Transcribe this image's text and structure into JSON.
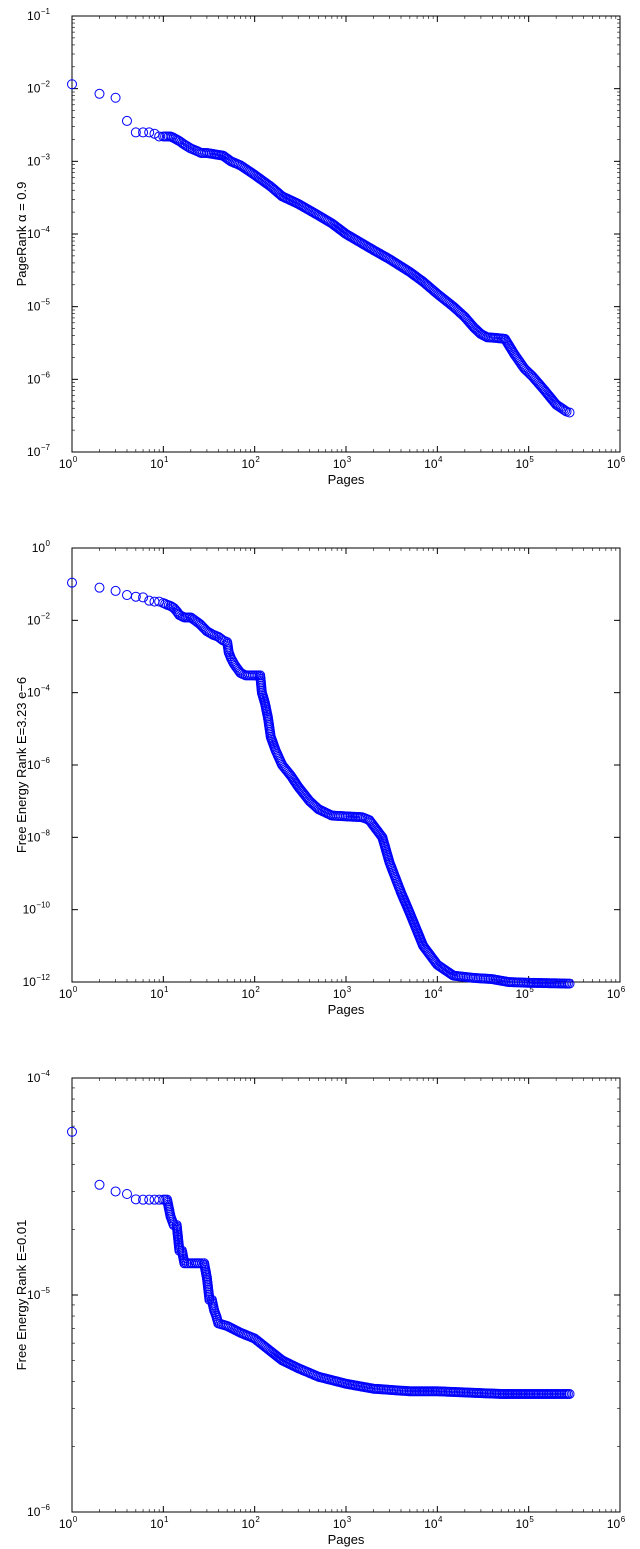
{
  "chart_data": [
    {
      "type": "scatter",
      "xscale": "log",
      "yscale": "log",
      "xlim": [
        1,
        1000000
      ],
      "ylim": [
        1e-07,
        0.1
      ],
      "xlabel": "Pages",
      "ylabel": "PageRank α = 0.9",
      "x_tick_exponents": [
        0,
        1,
        2,
        3,
        4,
        5,
        6
      ],
      "y_tick_exponents": [
        -7,
        -6,
        -5,
        -4,
        -3,
        -2,
        -1
      ],
      "marker_color": "#0000ff",
      "marker": "open-circle",
      "series": [
        {
          "points": [
            [
              1,
              0.0115
            ],
            [
              2,
              0.0085
            ],
            [
              3,
              0.0075
            ],
            [
              4,
              0.0036
            ],
            [
              5,
              0.0025
            ],
            [
              6,
              0.0025
            ],
            [
              7,
              0.0025
            ],
            [
              8,
              0.0024
            ],
            [
              9,
              0.0022
            ],
            [
              10,
              0.0022
            ],
            [
              12,
              0.0022
            ],
            [
              13,
              0.0021
            ],
            [
              15,
              0.0019
            ],
            [
              17,
              0.0017
            ],
            [
              20,
              0.0015
            ],
            [
              23,
              0.0014
            ],
            [
              26,
              0.0013
            ],
            [
              30,
              0.0013
            ],
            [
              45,
              0.0012
            ],
            [
              55,
              0.001
            ],
            [
              70,
              0.00088
            ],
            [
              100,
              0.00065
            ],
            [
              150,
              0.00045
            ],
            [
              200,
              0.00033
            ],
            [
              300,
              0.00026
            ],
            [
              500,
              0.00018
            ],
            [
              700,
              0.00014
            ],
            [
              1000,
              0.0001
            ],
            [
              2000,
              6e-05
            ],
            [
              3000,
              4.5e-05
            ],
            [
              5000,
              3e-05
            ],
            [
              7000,
              2.2e-05
            ],
            [
              10000,
              1.5e-05
            ],
            [
              15000,
              1e-05
            ],
            [
              20000,
              7.2e-06
            ],
            [
              25000,
              5.2e-06
            ],
            [
              30000,
              4.2e-06
            ],
            [
              35000,
              3.8e-06
            ],
            [
              45000,
              3.7e-06
            ],
            [
              55000,
              3.6e-06
            ],
            [
              70000,
              2.2e-06
            ],
            [
              90000,
              1.4e-06
            ],
            [
              110000,
              1.1e-06
            ],
            [
              150000,
              7e-07
            ],
            [
              200000,
              4.5e-07
            ],
            [
              260000,
              3.6e-07
            ],
            [
              280000,
              3.5e-07
            ]
          ]
        }
      ]
    },
    {
      "type": "scatter",
      "xscale": "log",
      "yscale": "log",
      "xlim": [
        1,
        1000000
      ],
      "ylim": [
        1e-12,
        1
      ],
      "xlabel": "Pages",
      "ylabel": "Free Energy Rank E=3.23 e−6",
      "x_tick_exponents": [
        0,
        1,
        2,
        3,
        4,
        5,
        6
      ],
      "y_tick_exponents": [
        -12,
        -10,
        -8,
        -6,
        -4,
        -2,
        0
      ],
      "marker_color": "#0000ff",
      "marker": "open-circle",
      "series": [
        {
          "points": [
            [
              1,
              0.11
            ],
            [
              2,
              0.08
            ],
            [
              3,
              0.065
            ],
            [
              4,
              0.05
            ],
            [
              5,
              0.045
            ],
            [
              6,
              0.043
            ],
            [
              7,
              0.035
            ],
            [
              8,
              0.033
            ],
            [
              9,
              0.033
            ],
            [
              10,
              0.03
            ],
            [
              11,
              0.027
            ],
            [
              12,
              0.025
            ],
            [
              13,
              0.022
            ],
            [
              14,
              0.018
            ],
            [
              15,
              0.014
            ],
            [
              17,
              0.012
            ],
            [
              20,
              0.012
            ],
            [
              25,
              0.008
            ],
            [
              30,
              0.005
            ],
            [
              35,
              0.004
            ],
            [
              40,
              0.0035
            ],
            [
              45,
              0.0028
            ],
            [
              50,
              0.0025
            ],
            [
              52,
              0.0013
            ],
            [
              55,
              0.0009
            ],
            [
              60,
              0.0006
            ],
            [
              70,
              0.00035
            ],
            [
              80,
              0.0003
            ],
            [
              100,
              0.0003
            ],
            [
              115,
              0.0003
            ],
            [
              120,
              0.0001
            ],
            [
              130,
              5e-05
            ],
            [
              140,
              2e-05
            ],
            [
              150,
              6e-06
            ],
            [
              170,
              2.5e-06
            ],
            [
              200,
              1e-06
            ],
            [
              250,
              5e-07
            ],
            [
              300,
              2.5e-07
            ],
            [
              400,
              1e-07
            ],
            [
              500,
              6e-08
            ],
            [
              700,
              4e-08
            ],
            [
              1000,
              3.8e-08
            ],
            [
              1500,
              3.6e-08
            ],
            [
              1800,
              3e-08
            ],
            [
              2500,
              1e-08
            ],
            [
              3000,
              2e-09
            ],
            [
              4000,
              3e-10
            ],
            [
              5000,
              8e-11
            ],
            [
              7000,
              1e-11
            ],
            [
              10000,
              3e-12
            ],
            [
              15000,
              1.5e-12
            ],
            [
              25000,
              1.3e-12
            ],
            [
              40000,
              1.2e-12
            ],
            [
              60000,
              1e-12
            ],
            [
              100000,
              9.5e-13
            ],
            [
              200000,
              9.2e-13
            ],
            [
              280000,
              9e-13
            ]
          ]
        }
      ]
    },
    {
      "type": "scatter",
      "xscale": "log",
      "yscale": "log",
      "xlim": [
        1,
        1000000
      ],
      "ylim": [
        1e-06,
        0.0001
      ],
      "xlabel": "Pages",
      "ylabel": "Free Energy Rank E=0.01",
      "x_tick_exponents": [
        0,
        1,
        2,
        3,
        4,
        5,
        6
      ],
      "y_tick_exponents": [
        -6,
        -5,
        -4
      ],
      "marker_color": "#0000ff",
      "marker": "open-circle",
      "series": [
        {
          "points": [
            [
              1,
              5.65e-05
            ],
            [
              2,
              3.22e-05
            ],
            [
              3,
              3e-05
            ],
            [
              4,
              2.92e-05
            ],
            [
              5,
              2.76e-05
            ],
            [
              6,
              2.75e-05
            ],
            [
              7,
              2.75e-05
            ],
            [
              8,
              2.75e-05
            ],
            [
              9,
              2.75e-05
            ],
            [
              10,
              2.75e-05
            ],
            [
              11,
              2.75e-05
            ],
            [
              12,
              2.3e-05
            ],
            [
              13,
              2.1e-05
            ],
            [
              14,
              2.1e-05
            ],
            [
              15,
              1.6e-05
            ],
            [
              16,
              1.6e-05
            ],
            [
              17,
              1.4e-05
            ],
            [
              18,
              1.4e-05
            ],
            [
              20,
              1.4e-05
            ],
            [
              22,
              1.4e-05
            ],
            [
              25,
              1.4e-05
            ],
            [
              28,
              1.4e-05
            ],
            [
              30,
              1.2e-05
            ],
            [
              32,
              9.5e-06
            ],
            [
              34,
              9.5e-06
            ],
            [
              36,
              8.5e-06
            ],
            [
              38,
              8e-06
            ],
            [
              40,
              7.4e-06
            ],
            [
              50,
              7.2e-06
            ],
            [
              70,
              6.7e-06
            ],
            [
              100,
              6.3e-06
            ],
            [
              150,
              5.5e-06
            ],
            [
              200,
              5e-06
            ],
            [
              300,
              4.6e-06
            ],
            [
              500,
              4.2e-06
            ],
            [
              1000,
              3.9e-06
            ],
            [
              2000,
              3.7e-06
            ],
            [
              5000,
              3.6e-06
            ],
            [
              10000,
              3.6e-06
            ],
            [
              50000,
              3.5e-06
            ],
            [
              100000,
              3.5e-06
            ],
            [
              280000,
              3.5e-06
            ]
          ]
        }
      ]
    }
  ]
}
